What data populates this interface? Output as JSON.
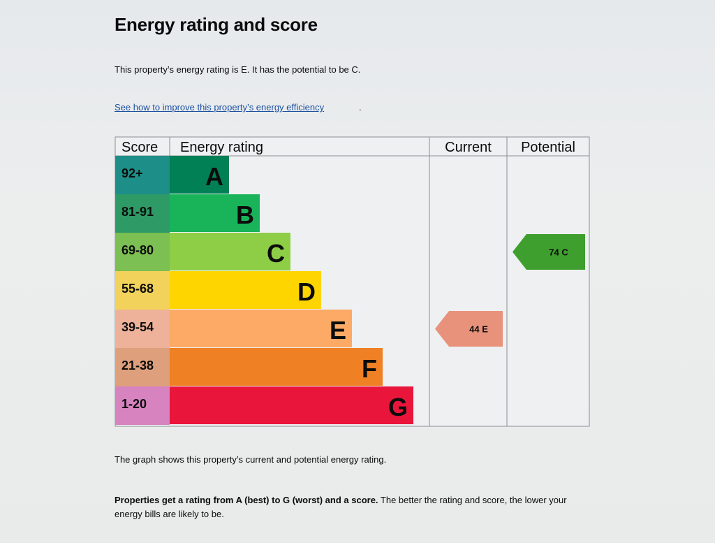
{
  "heading": "Energy rating and score",
  "intro": "This property’s energy rating is E. It has the potential to be C.",
  "improve_link": "See how to improve this property’s energy efficiency",
  "improve_link_suffix": ".",
  "caption": "The graph shows this property’s current and potential energy rating.",
  "explain_bold": "Properties get a rating from A (best) to G (worst) and a score.",
  "explain_rest": " The better the rating and score, the lower your energy bills are likely to be.",
  "chart_data": {
    "type": "table",
    "columns": [
      "Score",
      "Energy rating",
      "Current",
      "Potential"
    ],
    "bands": [
      {
        "score": "92+",
        "rating": "A",
        "color": "#008054",
        "score_color": "#1e8f88"
      },
      {
        "score": "81-91",
        "rating": "B",
        "color": "#19b459",
        "score_color": "#2e9a66"
      },
      {
        "score": "69-80",
        "rating": "C",
        "color": "#8dce46",
        "score_color": "#7cbf52"
      },
      {
        "score": "55-68",
        "rating": "D",
        "color": "#ffd500",
        "score_color": "#f2d25a"
      },
      {
        "score": "39-54",
        "rating": "E",
        "color": "#fcaa65",
        "score_color": "#eeb29a"
      },
      {
        "score": "21-38",
        "rating": "F",
        "color": "#ef8023",
        "score_color": "#dea07c"
      },
      {
        "score": "1-20",
        "rating": "G",
        "color": "#e9153b",
        "score_color": "#d783bf"
      }
    ],
    "current": {
      "score": 44,
      "rating": "E",
      "color": "#e9927b"
    },
    "potential": {
      "score": 74,
      "rating": "C",
      "color": "#3f9f2e"
    }
  }
}
